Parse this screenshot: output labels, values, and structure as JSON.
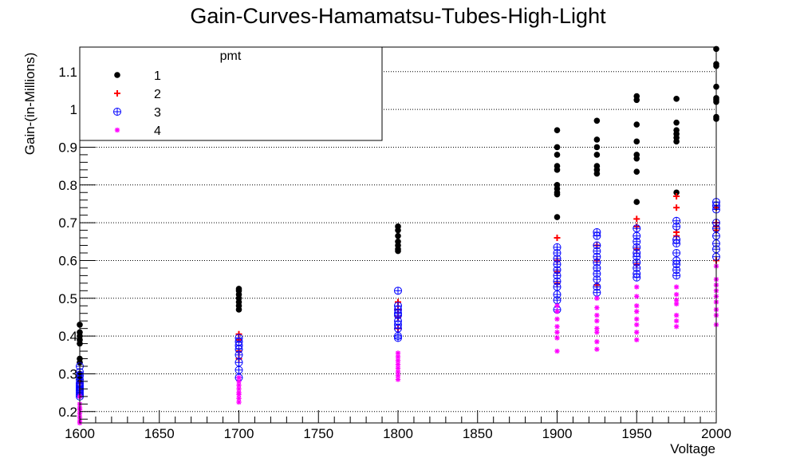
{
  "chart_data": {
    "type": "scatter",
    "title": "Gain-Curves-Hamamatsu-Tubes-High-Light",
    "xlabel": "Voltage",
    "ylabel": "Gain-(in-Millions)",
    "xlim": [
      1600,
      2000
    ],
    "ylim": [
      0.17,
      1.165
    ],
    "x_ticks": [
      1600,
      1650,
      1700,
      1750,
      1800,
      1850,
      1900,
      1950,
      2000
    ],
    "y_ticks": [
      0.2,
      0.3,
      0.4,
      0.5,
      0.6,
      0.7,
      0.8,
      0.9,
      1,
      1.1
    ],
    "y_grid": true,
    "x_grid": false,
    "legend": {
      "title": "pmt",
      "position": "top-left"
    },
    "series": [
      {
        "name": "1",
        "marker": "filled-circle",
        "color": "#000000",
        "points": [
          [
            1600,
            0.43
          ],
          [
            1600,
            0.41
          ],
          [
            1600,
            0.4
          ],
          [
            1600,
            0.39
          ],
          [
            1600,
            0.38
          ],
          [
            1600,
            0.34
          ],
          [
            1600,
            0.33
          ],
          [
            1600,
            0.3
          ],
          [
            1600,
            0.29
          ],
          [
            1600,
            0.28
          ],
          [
            1700,
            0.525
          ],
          [
            1700,
            0.52
          ],
          [
            1700,
            0.51
          ],
          [
            1700,
            0.5
          ],
          [
            1700,
            0.49
          ],
          [
            1700,
            0.48
          ],
          [
            1700,
            0.47
          ],
          [
            1800,
            0.69
          ],
          [
            1800,
            0.68
          ],
          [
            1800,
            0.665
          ],
          [
            1800,
            0.65
          ],
          [
            1800,
            0.64
          ],
          [
            1800,
            0.63
          ],
          [
            1800,
            0.625
          ],
          [
            1900,
            0.945
          ],
          [
            1900,
            0.9
          ],
          [
            1900,
            0.88
          ],
          [
            1900,
            0.85
          ],
          [
            1900,
            0.84
          ],
          [
            1900,
            0.8
          ],
          [
            1900,
            0.79
          ],
          [
            1900,
            0.78
          ],
          [
            1900,
            0.775
          ],
          [
            1900,
            0.715
          ],
          [
            1925,
            0.97
          ],
          [
            1925,
            0.92
          ],
          [
            1925,
            0.9
          ],
          [
            1925,
            0.88
          ],
          [
            1925,
            0.85
          ],
          [
            1925,
            0.84
          ],
          [
            1925,
            0.83
          ],
          [
            1950,
            1.035
          ],
          [
            1950,
            1.025
          ],
          [
            1950,
            0.96
          ],
          [
            1950,
            0.915
          ],
          [
            1950,
            0.88
          ],
          [
            1950,
            0.87
          ],
          [
            1950,
            0.835
          ],
          [
            1950,
            0.755
          ],
          [
            1975,
            1.028
          ],
          [
            1975,
            0.965
          ],
          [
            1975,
            0.945
          ],
          [
            1975,
            0.935
          ],
          [
            1975,
            0.925
          ],
          [
            1975,
            0.915
          ],
          [
            1975,
            0.78
          ],
          [
            2000,
            1.16
          ],
          [
            2000,
            1.12
          ],
          [
            2000,
            1.115
          ],
          [
            2000,
            1.06
          ],
          [
            2000,
            1.03
          ],
          [
            2000,
            1.025
          ],
          [
            2000,
            1.02
          ],
          [
            2000,
            0.98
          ],
          [
            2000,
            0.975
          ]
        ]
      },
      {
        "name": "2",
        "marker": "plus",
        "color": "#ff0000",
        "points": [
          [
            1600,
            0.275
          ],
          [
            1600,
            0.265
          ],
          [
            1600,
            0.25
          ],
          [
            1700,
            0.405
          ],
          [
            1700,
            0.39
          ],
          [
            1700,
            0.36
          ],
          [
            1700,
            0.34
          ],
          [
            1800,
            0.49
          ],
          [
            1800,
            0.47
          ],
          [
            1800,
            0.45
          ],
          [
            1800,
            0.42
          ],
          [
            1900,
            0.66
          ],
          [
            1900,
            0.6
          ],
          [
            1900,
            0.57
          ],
          [
            1900,
            0.54
          ],
          [
            1925,
            0.64
          ],
          [
            1925,
            0.6
          ],
          [
            1925,
            0.535
          ],
          [
            1950,
            0.71
          ],
          [
            1950,
            0.69
          ],
          [
            1950,
            0.63
          ],
          [
            1950,
            0.59
          ],
          [
            1975,
            0.77
          ],
          [
            1975,
            0.74
          ],
          [
            1975,
            0.675
          ],
          [
            1975,
            0.665
          ],
          [
            2000,
            0.74
          ],
          [
            2000,
            0.7
          ],
          [
            2000,
            0.69
          ],
          [
            2000,
            0.68
          ],
          [
            2000,
            0.6
          ]
        ]
      },
      {
        "name": "3",
        "marker": "circle-plus",
        "color": "#0000ff",
        "points": [
          [
            1600,
            0.32
          ],
          [
            1600,
            0.305
          ],
          [
            1600,
            0.295
          ],
          [
            1600,
            0.285
          ],
          [
            1600,
            0.275
          ],
          [
            1600,
            0.27
          ],
          [
            1600,
            0.265
          ],
          [
            1600,
            0.26
          ],
          [
            1600,
            0.255
          ],
          [
            1600,
            0.25
          ],
          [
            1600,
            0.245
          ],
          [
            1600,
            0.24
          ],
          [
            1700,
            0.395
          ],
          [
            1700,
            0.385
          ],
          [
            1700,
            0.375
          ],
          [
            1700,
            0.365
          ],
          [
            1700,
            0.35
          ],
          [
            1700,
            0.33
          ],
          [
            1700,
            0.31
          ],
          [
            1700,
            0.29
          ],
          [
            1800,
            0.52
          ],
          [
            1800,
            0.48
          ],
          [
            1800,
            0.47
          ],
          [
            1800,
            0.46
          ],
          [
            1800,
            0.455
          ],
          [
            1800,
            0.44
          ],
          [
            1800,
            0.43
          ],
          [
            1800,
            0.42
          ],
          [
            1800,
            0.4
          ],
          [
            1800,
            0.395
          ],
          [
            1900,
            0.635
          ],
          [
            1900,
            0.62
          ],
          [
            1900,
            0.605
          ],
          [
            1900,
            0.59
          ],
          [
            1900,
            0.575
          ],
          [
            1900,
            0.56
          ],
          [
            1900,
            0.545
          ],
          [
            1900,
            0.53
          ],
          [
            1900,
            0.51
          ],
          [
            1900,
            0.495
          ],
          [
            1900,
            0.47
          ],
          [
            1925,
            0.675
          ],
          [
            1925,
            0.665
          ],
          [
            1925,
            0.64
          ],
          [
            1925,
            0.625
          ],
          [
            1925,
            0.61
          ],
          [
            1925,
            0.595
          ],
          [
            1925,
            0.58
          ],
          [
            1925,
            0.565
          ],
          [
            1925,
            0.55
          ],
          [
            1925,
            0.53
          ],
          [
            1925,
            0.515
          ],
          [
            1950,
            0.685
          ],
          [
            1950,
            0.665
          ],
          [
            1950,
            0.65
          ],
          [
            1950,
            0.635
          ],
          [
            1950,
            0.62
          ],
          [
            1950,
            0.61
          ],
          [
            1950,
            0.595
          ],
          [
            1950,
            0.58
          ],
          [
            1950,
            0.565
          ],
          [
            1950,
            0.555
          ],
          [
            1975,
            0.705
          ],
          [
            1975,
            0.69
          ],
          [
            1975,
            0.655
          ],
          [
            1975,
            0.645
          ],
          [
            1975,
            0.62
          ],
          [
            1975,
            0.6
          ],
          [
            1975,
            0.59
          ],
          [
            1975,
            0.575
          ],
          [
            1975,
            0.56
          ],
          [
            2000,
            0.755
          ],
          [
            2000,
            0.745
          ],
          [
            2000,
            0.735
          ],
          [
            2000,
            0.7
          ],
          [
            2000,
            0.685
          ],
          [
            2000,
            0.665
          ],
          [
            2000,
            0.645
          ],
          [
            2000,
            0.63
          ],
          [
            2000,
            0.61
          ]
        ]
      },
      {
        "name": "4",
        "marker": "star",
        "color": "#ff00ff",
        "points": [
          [
            1600,
            0.24
          ],
          [
            1600,
            0.22
          ],
          [
            1600,
            0.21
          ],
          [
            1600,
            0.205
          ],
          [
            1600,
            0.195
          ],
          [
            1600,
            0.185
          ],
          [
            1600,
            0.175
          ],
          [
            1600,
            0.16
          ],
          [
            1700,
            0.29
          ],
          [
            1700,
            0.28
          ],
          [
            1700,
            0.27
          ],
          [
            1700,
            0.26
          ],
          [
            1700,
            0.25
          ],
          [
            1700,
            0.245
          ],
          [
            1700,
            0.235
          ],
          [
            1700,
            0.225
          ],
          [
            1800,
            0.355
          ],
          [
            1800,
            0.345
          ],
          [
            1800,
            0.335
          ],
          [
            1800,
            0.325
          ],
          [
            1800,
            0.315
          ],
          [
            1800,
            0.305
          ],
          [
            1800,
            0.295
          ],
          [
            1800,
            0.285
          ],
          [
            1900,
            0.48
          ],
          [
            1900,
            0.465
          ],
          [
            1900,
            0.445
          ],
          [
            1900,
            0.425
          ],
          [
            1900,
            0.41
          ],
          [
            1900,
            0.395
          ],
          [
            1900,
            0.36
          ],
          [
            1925,
            0.5
          ],
          [
            1925,
            0.475
          ],
          [
            1925,
            0.455
          ],
          [
            1925,
            0.44
          ],
          [
            1925,
            0.42
          ],
          [
            1925,
            0.41
          ],
          [
            1925,
            0.385
          ],
          [
            1925,
            0.365
          ],
          [
            1950,
            0.53
          ],
          [
            1950,
            0.505
          ],
          [
            1950,
            0.48
          ],
          [
            1950,
            0.465
          ],
          [
            1950,
            0.445
          ],
          [
            1950,
            0.43
          ],
          [
            1950,
            0.41
          ],
          [
            1950,
            0.39
          ],
          [
            1975,
            0.53
          ],
          [
            1975,
            0.51
          ],
          [
            1975,
            0.495
          ],
          [
            1975,
            0.485
          ],
          [
            1975,
            0.455
          ],
          [
            1975,
            0.44
          ],
          [
            1975,
            0.425
          ],
          [
            2000,
            0.585
          ],
          [
            2000,
            0.55
          ],
          [
            2000,
            0.535
          ],
          [
            2000,
            0.52
          ],
          [
            2000,
            0.505
          ],
          [
            2000,
            0.49
          ],
          [
            2000,
            0.47
          ],
          [
            2000,
            0.455
          ],
          [
            2000,
            0.43
          ]
        ]
      }
    ]
  }
}
